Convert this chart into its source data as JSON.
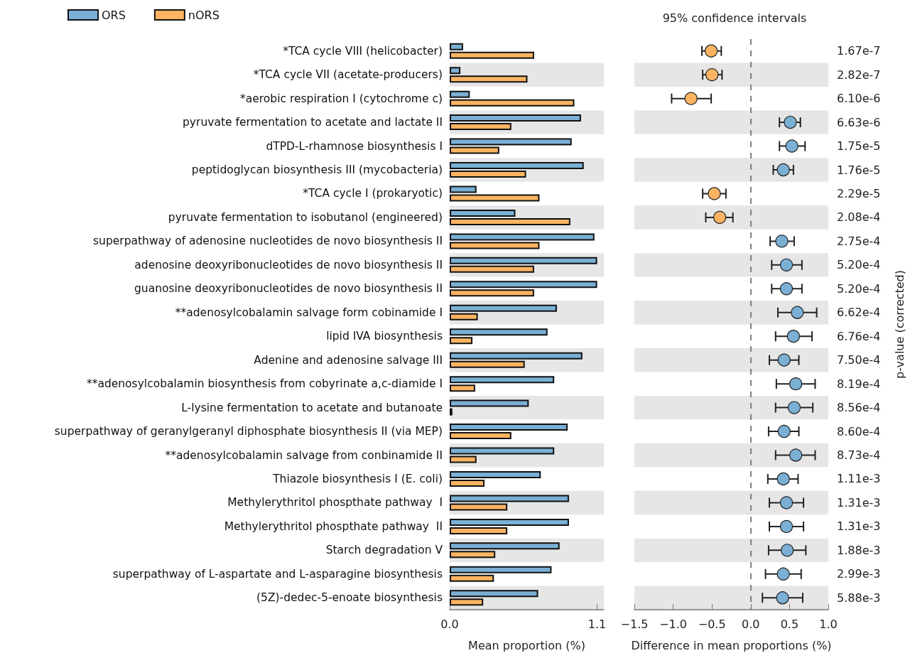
{
  "chart_data": [
    {
      "type": "bar",
      "orientation": "horizontal",
      "xlabel": "Mean proportion (%)",
      "legend": "top left",
      "categories": [
        "*TCA cycle VIII (helicobacter)",
        "*TCA cycle VII (acetate-producers)",
        "*aerobic respiration I (cytochrome c)",
        "pyruvate fermentation to acetate and lactate II",
        "dTPD-L-rhamnose biosynthesis I",
        "peptidoglycan biosynthesis III (mycobacteria)",
        "*TCA cycle I (prokaryotic)",
        "pyruvate fermentation to isobutanol (engineered)",
        "superpathway of adenosine nucleotides de novo biosynthesis II",
        "adenosine deoxyribonucleotides de novo biosynthesis II",
        "guanosine deoxyribonucleotides de novo biosynthesis II",
        "**adenosylcobalamin salvage form cobinamide I",
        "lipid IVA biosynthesis",
        "Adenine and adenosine salvage III",
        "**adenosylcobalamin biosynthesis from cobyrinate a,c-diamide I",
        "L-lysine fermentation to acetate and butanoate",
        "superpathway of geranylgeranyl diphosphate biosynthesis II (via MEP)",
        "**adenosylcobalamin salvage from conbinamide II",
        "Thiazole biosynthesis I (E. coli)",
        "Methylerythritol phospthate pathway  I",
        "Methylerythritol phospthate pathway  II",
        "Starch degradation V",
        "superpathway of L-aspartate and L-asparagine biosynthesis",
        "(5Z)-dedec-5-enoate biosynthesis"
      ],
      "xlim": [
        0,
        1.15
      ],
      "xticks": [
        {
          "value": 0,
          "label": "0.0"
        },
        1.1
      ],
      "bands": [
        {
          "axis": "y",
          "from": "*TCA cycle VII (acetate-producers)",
          "to": "*TCA cycle VII (acetate-producers)",
          "color": "#e6e6e6"
        },
        {
          "axis": "y",
          "from": "pyruvate fermentation to acetate and lactate II",
          "to": "pyruvate fermentation to acetate and lactate II",
          "color": "#e6e6e6"
        },
        {
          "axis": "y",
          "from": "peptidoglycan biosynthesis III (mycobacteria)",
          "to": "peptidoglycan biosynthesis III (mycobacteria)",
          "color": "#e6e6e6"
        },
        {
          "axis": "y",
          "from": "pyruvate fermentation to isobutanol (engineered)",
          "to": "pyruvate fermentation to isobutanol (engineered)",
          "color": "#e6e6e6"
        },
        {
          "axis": "y",
          "from": "adenosine deoxyribonucleotides de novo biosynthesis II",
          "to": "adenosine deoxyribonucleotides de novo biosynthesis II",
          "color": "#e6e6e6"
        },
        {
          "axis": "y",
          "from": "**adenosylcobalamin salvage form cobinamide I",
          "to": "**adenosylcobalamin salvage form cobinamide I",
          "color": "#e6e6e6"
        },
        {
          "axis": "y",
          "from": "Adenine and adenosine salvage III",
          "to": "Adenine and adenosine salvage III",
          "color": "#e6e6e6"
        },
        {
          "axis": "y",
          "from": "L-lysine fermentation to acetate and butanoate",
          "to": "L-lysine fermentation to acetate and butanoate",
          "color": "#e6e6e6"
        },
        {
          "axis": "y",
          "from": "**adenosylcobalamin salvage from conbinamide II",
          "to": "**adenosylcobalamin salvage from conbinamide II",
          "color": "#e6e6e6"
        },
        {
          "axis": "y",
          "from": "Methylerythritol phospthate pathway  I",
          "to": "Methylerythritol phospthate pathway  I",
          "color": "#e6e6e6"
        },
        {
          "axis": "y",
          "from": "Starch degradation V",
          "to": "Starch degradation V",
          "color": "#e6e6e6"
        },
        {
          "axis": "y",
          "from": "(5Z)-dedec-5-enoate biosynthesis",
          "to": "(5Z)-dedec-5-enoate biosynthesis",
          "color": "#e6e6e6"
        }
      ],
      "series": [
        {
          "name": "ORS",
          "color": "#7bafd4",
          "values": [
            0.1,
            0.08,
            0.15,
            0.98,
            0.91,
            1.0,
            0.2,
            0.49,
            1.08,
            1.1,
            1.1,
            0.8,
            0.73,
            0.99,
            0.78,
            0.59,
            0.88,
            0.78,
            0.68,
            0.89,
            0.89,
            0.82,
            0.76,
            0.66
          ]
        },
        {
          "name": "nORS",
          "color": "#fdb462",
          "values": [
            0.63,
            0.58,
            0.93,
            0.46,
            0.37,
            0.57,
            0.67,
            0.9,
            0.67,
            0.63,
            0.63,
            0.21,
            0.17,
            0.56,
            0.19,
            0.02,
            0.46,
            0.2,
            0.26,
            0.43,
            0.43,
            0.34,
            0.33,
            0.25
          ]
        }
      ]
    },
    {
      "type": "scatter",
      "orientation": "horizontal",
      "title": "95% confidence intervals",
      "xlabel": "Difference in mean proportions (%)",
      "y2label": "p-value (corrected)",
      "marker": "circle",
      "tick_labels": "x",
      "categories": [
        "*TCA cycle VIII (helicobacter)",
        "*TCA cycle VII (acetate-producers)",
        "*aerobic respiration I (cytochrome c)",
        "pyruvate fermentation to acetate and lactate II",
        "dTPD-L-rhamnose biosynthesis I",
        "peptidoglycan biosynthesis III (mycobacteria)",
        "*TCA cycle I (prokaryotic)",
        "pyruvate fermentation to isobutanol (engineered)",
        "superpathway of adenosine nucleotides de novo biosynthesis II",
        "adenosine deoxyribonucleotides de novo biosynthesis II",
        "guanosine deoxyribonucleotides de novo biosynthesis II",
        "**adenosylcobalamin salvage form cobinamide I",
        "lipid IVA biosynthesis",
        "Adenine and adenosine salvage III",
        "**adenosylcobalamin biosynthesis from cobyrinate a,c-diamide I",
        "L-lysine fermentation to acetate and butanoate",
        "superpathway of geranylgeranyl diphosphate biosynthesis II (via MEP)",
        "**adenosylcobalamin salvage from conbinamide II",
        "Thiazole biosynthesis I (E. coli)",
        "Methylerythritol phospthate pathway  I",
        "Methylerythritol phospthate pathway  II",
        "Starch degradation V",
        "superpathway of L-aspartate and L-asparagine biosynthesis",
        "(5Z)-dedec-5-enoate biosynthesis"
      ],
      "y2_categories": [
        "1.67e-7",
        "2.82e-7",
        "6.10e-6",
        "6.63e-6",
        "1.75e-5",
        "1.76e-5",
        "2.29e-5",
        "2.08e-4",
        "2.75e-4",
        "5.20e-4",
        "5.20e-4",
        "6.62e-4",
        "6.76e-4",
        "7.50e-4",
        "8.19e-4",
        "8.56e-4",
        "8.60e-4",
        "8.73e-4",
        "1.11e-3",
        "1.31e-3",
        "1.31e-3",
        "1.88e-3",
        "2.99e-3",
        "5.88e-3"
      ],
      "xlim": [
        -1.5,
        1.0
      ],
      "xticks": [
        {
          "value": -1.5,
          "label": "−1.5"
        },
        {
          "value": -1,
          "label": "−1.0"
        },
        {
          "value": -0.5,
          "label": "−0.5"
        },
        {
          "value": 0,
          "label": "0.0"
        },
        0.5,
        {
          "value": 1,
          "label": "1.0"
        }
      ],
      "ref_lines": [
        {
          "axis": "x",
          "value": 0,
          "color": "#808080",
          "line_style": "dashed"
        }
      ],
      "bands": [
        {
          "axis": "y",
          "from": "*TCA cycle VII (acetate-producers)",
          "to": "*TCA cycle VII (acetate-producers)",
          "color": "#e6e6e6"
        },
        {
          "axis": "y",
          "from": "pyruvate fermentation to acetate and lactate II",
          "to": "pyruvate fermentation to acetate and lactate II",
          "color": "#e6e6e6"
        },
        {
          "axis": "y",
          "from": "peptidoglycan biosynthesis III (mycobacteria)",
          "to": "peptidoglycan biosynthesis III (mycobacteria)",
          "color": "#e6e6e6"
        },
        {
          "axis": "y",
          "from": "pyruvate fermentation to isobutanol (engineered)",
          "to": "pyruvate fermentation to isobutanol (engineered)",
          "color": "#e6e6e6"
        },
        {
          "axis": "y",
          "from": "adenosine deoxyribonucleotides de novo biosynthesis II",
          "to": "adenosine deoxyribonucleotides de novo biosynthesis II",
          "color": "#e6e6e6"
        },
        {
          "axis": "y",
          "from": "**adenosylcobalamin salvage form cobinamide I",
          "to": "**adenosylcobalamin salvage form cobinamide I",
          "color": "#e6e6e6"
        },
        {
          "axis": "y",
          "from": "Adenine and adenosine salvage III",
          "to": "Adenine and adenosine salvage III",
          "color": "#e6e6e6"
        },
        {
          "axis": "y",
          "from": "L-lysine fermentation to acetate and butanoate",
          "to": "L-lysine fermentation to acetate and butanoate",
          "color": "#e6e6e6"
        },
        {
          "axis": "y",
          "from": "**adenosylcobalamin salvage from conbinamide II",
          "to": "**adenosylcobalamin salvage from conbinamide II",
          "color": "#e6e6e6"
        },
        {
          "axis": "y",
          "from": "Methylerythritol phospthate pathway  I",
          "to": "Methylerythritol phospthate pathway  I",
          "color": "#e6e6e6"
        },
        {
          "axis": "y",
          "from": "Starch degradation V",
          "to": "Starch degradation V",
          "color": "#e6e6e6"
        },
        {
          "axis": "y",
          "from": "(5Z)-dedec-5-enoate biosynthesis",
          "to": "(5Z)-dedec-5-enoate biosynthesis",
          "color": "#e6e6e6"
        }
      ],
      "values": [
        -0.51,
        -0.5,
        -0.77,
        0.51,
        0.53,
        0.42,
        -0.47,
        -0.4,
        0.4,
        0.46,
        0.46,
        0.6,
        0.55,
        0.43,
        0.58,
        0.56,
        0.43,
        0.58,
        0.42,
        0.46,
        0.46,
        0.47,
        0.42,
        0.41
      ],
      "errors": [
        [
          -0.63,
          -0.38
        ],
        [
          -0.62,
          -0.37
        ],
        [
          -1.02,
          -0.51
        ],
        [
          0.37,
          0.64
        ],
        [
          0.37,
          0.7
        ],
        [
          0.29,
          0.55
        ],
        [
          -0.62,
          -0.32
        ],
        [
          -0.58,
          -0.23
        ],
        [
          0.25,
          0.56
        ],
        [
          0.27,
          0.66
        ],
        [
          0.27,
          0.66
        ],
        [
          0.35,
          0.85
        ],
        [
          0.32,
          0.79
        ],
        [
          0.24,
          0.62
        ],
        [
          0.33,
          0.83
        ],
        [
          0.32,
          0.8
        ],
        [
          0.23,
          0.62
        ],
        [
          0.32,
          0.83
        ],
        [
          0.22,
          0.61
        ],
        [
          0.24,
          0.68
        ],
        [
          0.24,
          0.68
        ],
        [
          0.23,
          0.71
        ],
        [
          0.19,
          0.65
        ],
        [
          0.15,
          0.67
        ]
      ],
      "colors": [
        "#fdb462",
        "#fdb462",
        "#fdb462",
        "#7bafd4",
        "#7bafd4",
        "#7bafd4",
        "#fdb462",
        "#fdb462",
        "#7bafd4",
        "#7bafd4",
        "#7bafd4",
        "#7bafd4",
        "#7bafd4",
        "#7bafd4",
        "#7bafd4",
        "#7bafd4",
        "#7bafd4",
        "#7bafd4",
        "#7bafd4",
        "#7bafd4",
        "#7bafd4",
        "#7bafd4",
        "#7bafd4",
        "#7bafd4"
      ]
    }
  ]
}
